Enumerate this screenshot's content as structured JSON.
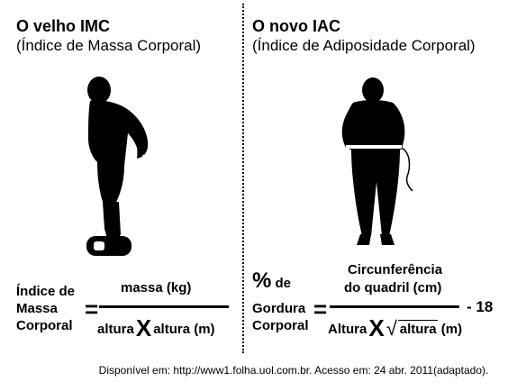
{
  "imc": {
    "title": "O velho IMC",
    "subtitle": "(Índice de Massa Corporal)",
    "label_line1": "Índice de",
    "label_line2": "Massa",
    "label_line3": "Corporal",
    "equals": "=",
    "numerator": "massa (kg)",
    "den_left": "altura",
    "times": "X",
    "den_right": "altura (m)"
  },
  "iac": {
    "title": "O novo IAC",
    "subtitle": "(Índice de Adiposidade Corporal)",
    "percent": "%",
    "label_line1": "de",
    "label_line2": "Gordura",
    "label_line3": "Corporal",
    "equals": "=",
    "num_line1": "Circunferência",
    "num_line2": "do quadril (cm)",
    "den_left": "Altura",
    "times": "X",
    "radical": "√",
    "den_sqrt": "altura",
    "den_unit": "(m)",
    "minus18": "- 18"
  },
  "source": "Disponível em: http://www1.folha.uol.com.br. Acesso em: 24 abr. 2011(adaptado).",
  "colors": {
    "ink": "#000000",
    "background": "#ffffff"
  },
  "icons": [
    "bent-over-person-silhouette-icon",
    "person-measuring-hip-silhouette-icon"
  ]
}
